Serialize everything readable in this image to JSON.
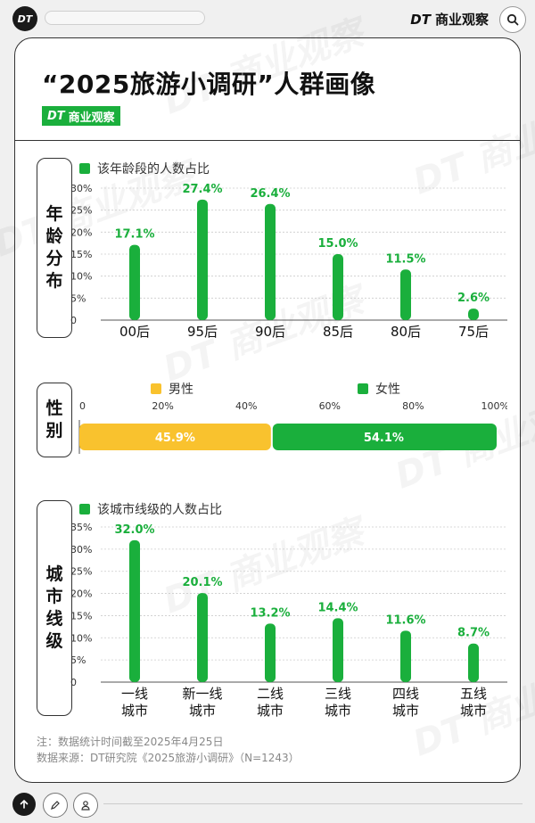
{
  "topbar": {
    "logo": "DT",
    "brand_dt": "DT",
    "brand_name": "商业观察"
  },
  "header": {
    "title": "“2025旅游小调研”人群画像",
    "badge_dt": "DT",
    "badge_name": "商业观察"
  },
  "watermark": "DT 商业观察",
  "colors": {
    "green": "#1aaf3c",
    "yellow": "#f9c22e",
    "grid": "#cccccc"
  },
  "sections": {
    "age": {
      "label": [
        "年",
        "龄",
        "分",
        "布"
      ],
      "legend": "该年龄段的人数占比"
    },
    "gender": {
      "label": [
        "性",
        "别"
      ],
      "legend_male": "男性",
      "legend_female": "女性"
    },
    "city": {
      "label": [
        "城",
        "市",
        "线",
        "级"
      ],
      "legend": "该城市线级的人数占比"
    }
  },
  "chart_data": [
    {
      "type": "bar",
      "name": "age",
      "categories": [
        "00后",
        "95后",
        "90后",
        "85后",
        "80后",
        "75后"
      ],
      "values": [
        17.1,
        27.4,
        26.4,
        15.0,
        11.5,
        2.6
      ],
      "value_labels": [
        "17.1%",
        "27.4%",
        "26.4%",
        "15.0%",
        "11.5%",
        "2.6%"
      ],
      "yticks": [
        "0",
        "5%",
        "10%",
        "15%",
        "20%",
        "25%",
        "30%"
      ],
      "ylim": [
        0,
        30
      ],
      "legend": "该年龄段的人数占比",
      "grid": true
    },
    {
      "type": "bar",
      "name": "gender",
      "orientation": "horizontal-stacked",
      "series": [
        {
          "name": "男性",
          "value": 45.9,
          "label": "45.9%"
        },
        {
          "name": "女性",
          "value": 54.1,
          "label": "54.1%"
        }
      ],
      "xticks": [
        "0",
        "20%",
        "40%",
        "60%",
        "80%",
        "100%"
      ],
      "xlim": [
        0,
        100
      ]
    },
    {
      "type": "bar",
      "name": "city",
      "categories": [
        [
          "一线",
          "城市"
        ],
        [
          "新一线",
          "城市"
        ],
        [
          "二线",
          "城市"
        ],
        [
          "三线",
          "城市"
        ],
        [
          "四线",
          "城市"
        ],
        [
          "五线",
          "城市"
        ]
      ],
      "values": [
        32.0,
        20.1,
        13.2,
        14.4,
        11.6,
        8.7
      ],
      "value_labels": [
        "32.0%",
        "20.1%",
        "13.2%",
        "14.4%",
        "11.6%",
        "8.7%"
      ],
      "yticks": [
        "0",
        "5%",
        "10%",
        "15%",
        "20%",
        "25%",
        "30%",
        "35%"
      ],
      "ylim": [
        0,
        35
      ],
      "legend": "该城市线级的人数占比",
      "grid": true
    }
  ],
  "footnotes": [
    "注：数据统计时间截至2025年4月25日",
    "数据来源：DT研究院《2025旅游小调研》（N=1243）"
  ]
}
